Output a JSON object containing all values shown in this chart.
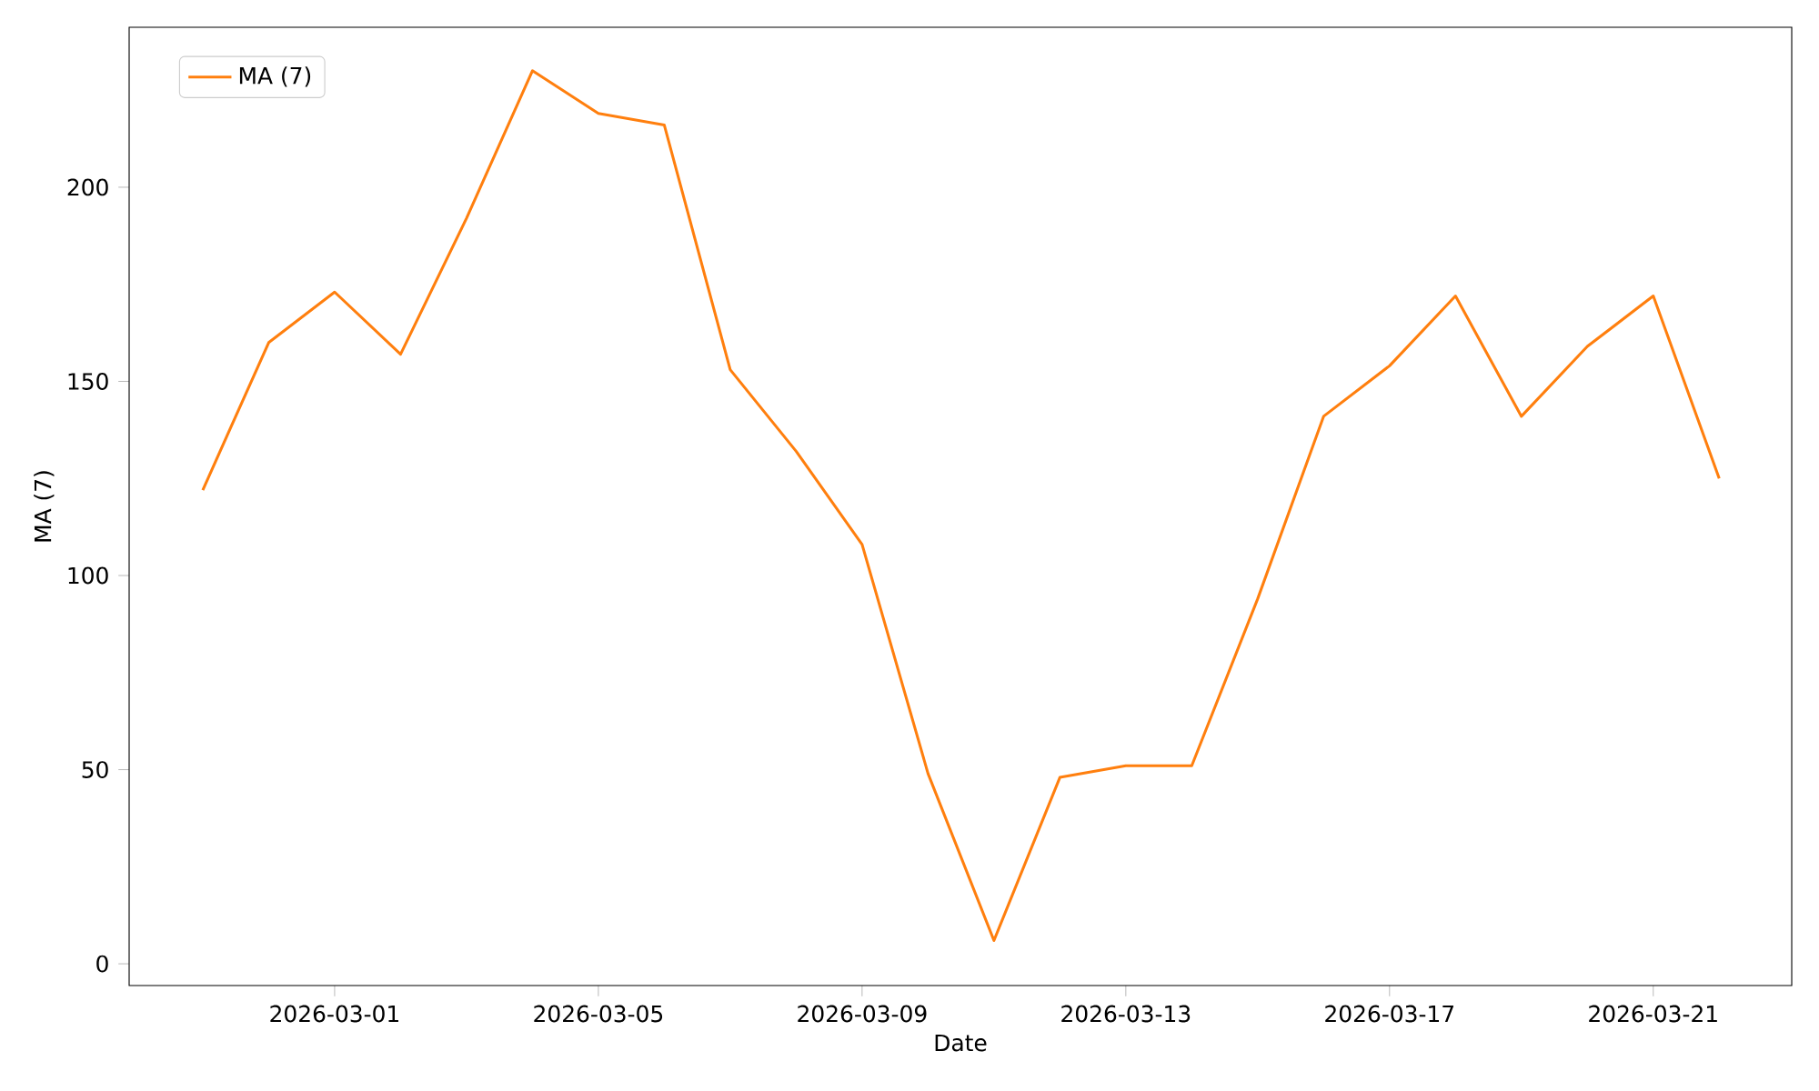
{
  "chart_data": {
    "type": "line",
    "xlabel": "Date",
    "ylabel": "MA (7)",
    "x": [
      "2026-02-27",
      "2026-02-28",
      "2026-03-01",
      "2026-03-02",
      "2026-03-03",
      "2026-03-04",
      "2026-03-05",
      "2026-03-06",
      "2026-03-07",
      "2026-03-08",
      "2026-03-09",
      "2026-03-10",
      "2026-03-11",
      "2026-03-12",
      "2026-03-13",
      "2026-03-14",
      "2026-03-15",
      "2026-03-16",
      "2026-03-17",
      "2026-03-18",
      "2026-03-19",
      "2026-03-20",
      "2026-03-21",
      "2026-03-22"
    ],
    "series": [
      {
        "name": "MA (7)",
        "color": "#ff7f0e",
        "values": [
          122,
          160,
          173,
          157,
          192,
          230,
          219,
          216,
          153,
          132,
          108,
          49,
          6,
          48,
          51,
          51,
          94,
          141,
          154,
          172,
          141,
          159,
          172,
          125
        ]
      }
    ],
    "xlim": [
      "2026-02-25T21:12",
      "2026-03-23T02:24"
    ],
    "ylim": [
      -5.6,
      241.2
    ],
    "xticks": [
      "2026-03-01",
      "2026-03-05",
      "2026-03-09",
      "2026-03-13",
      "2026-03-17",
      "2026-03-21"
    ],
    "yticks": [
      0,
      50,
      100,
      150,
      200
    ],
    "grid": false,
    "legend": "top left",
    "marker": "none",
    "line_style": "solid"
  }
}
